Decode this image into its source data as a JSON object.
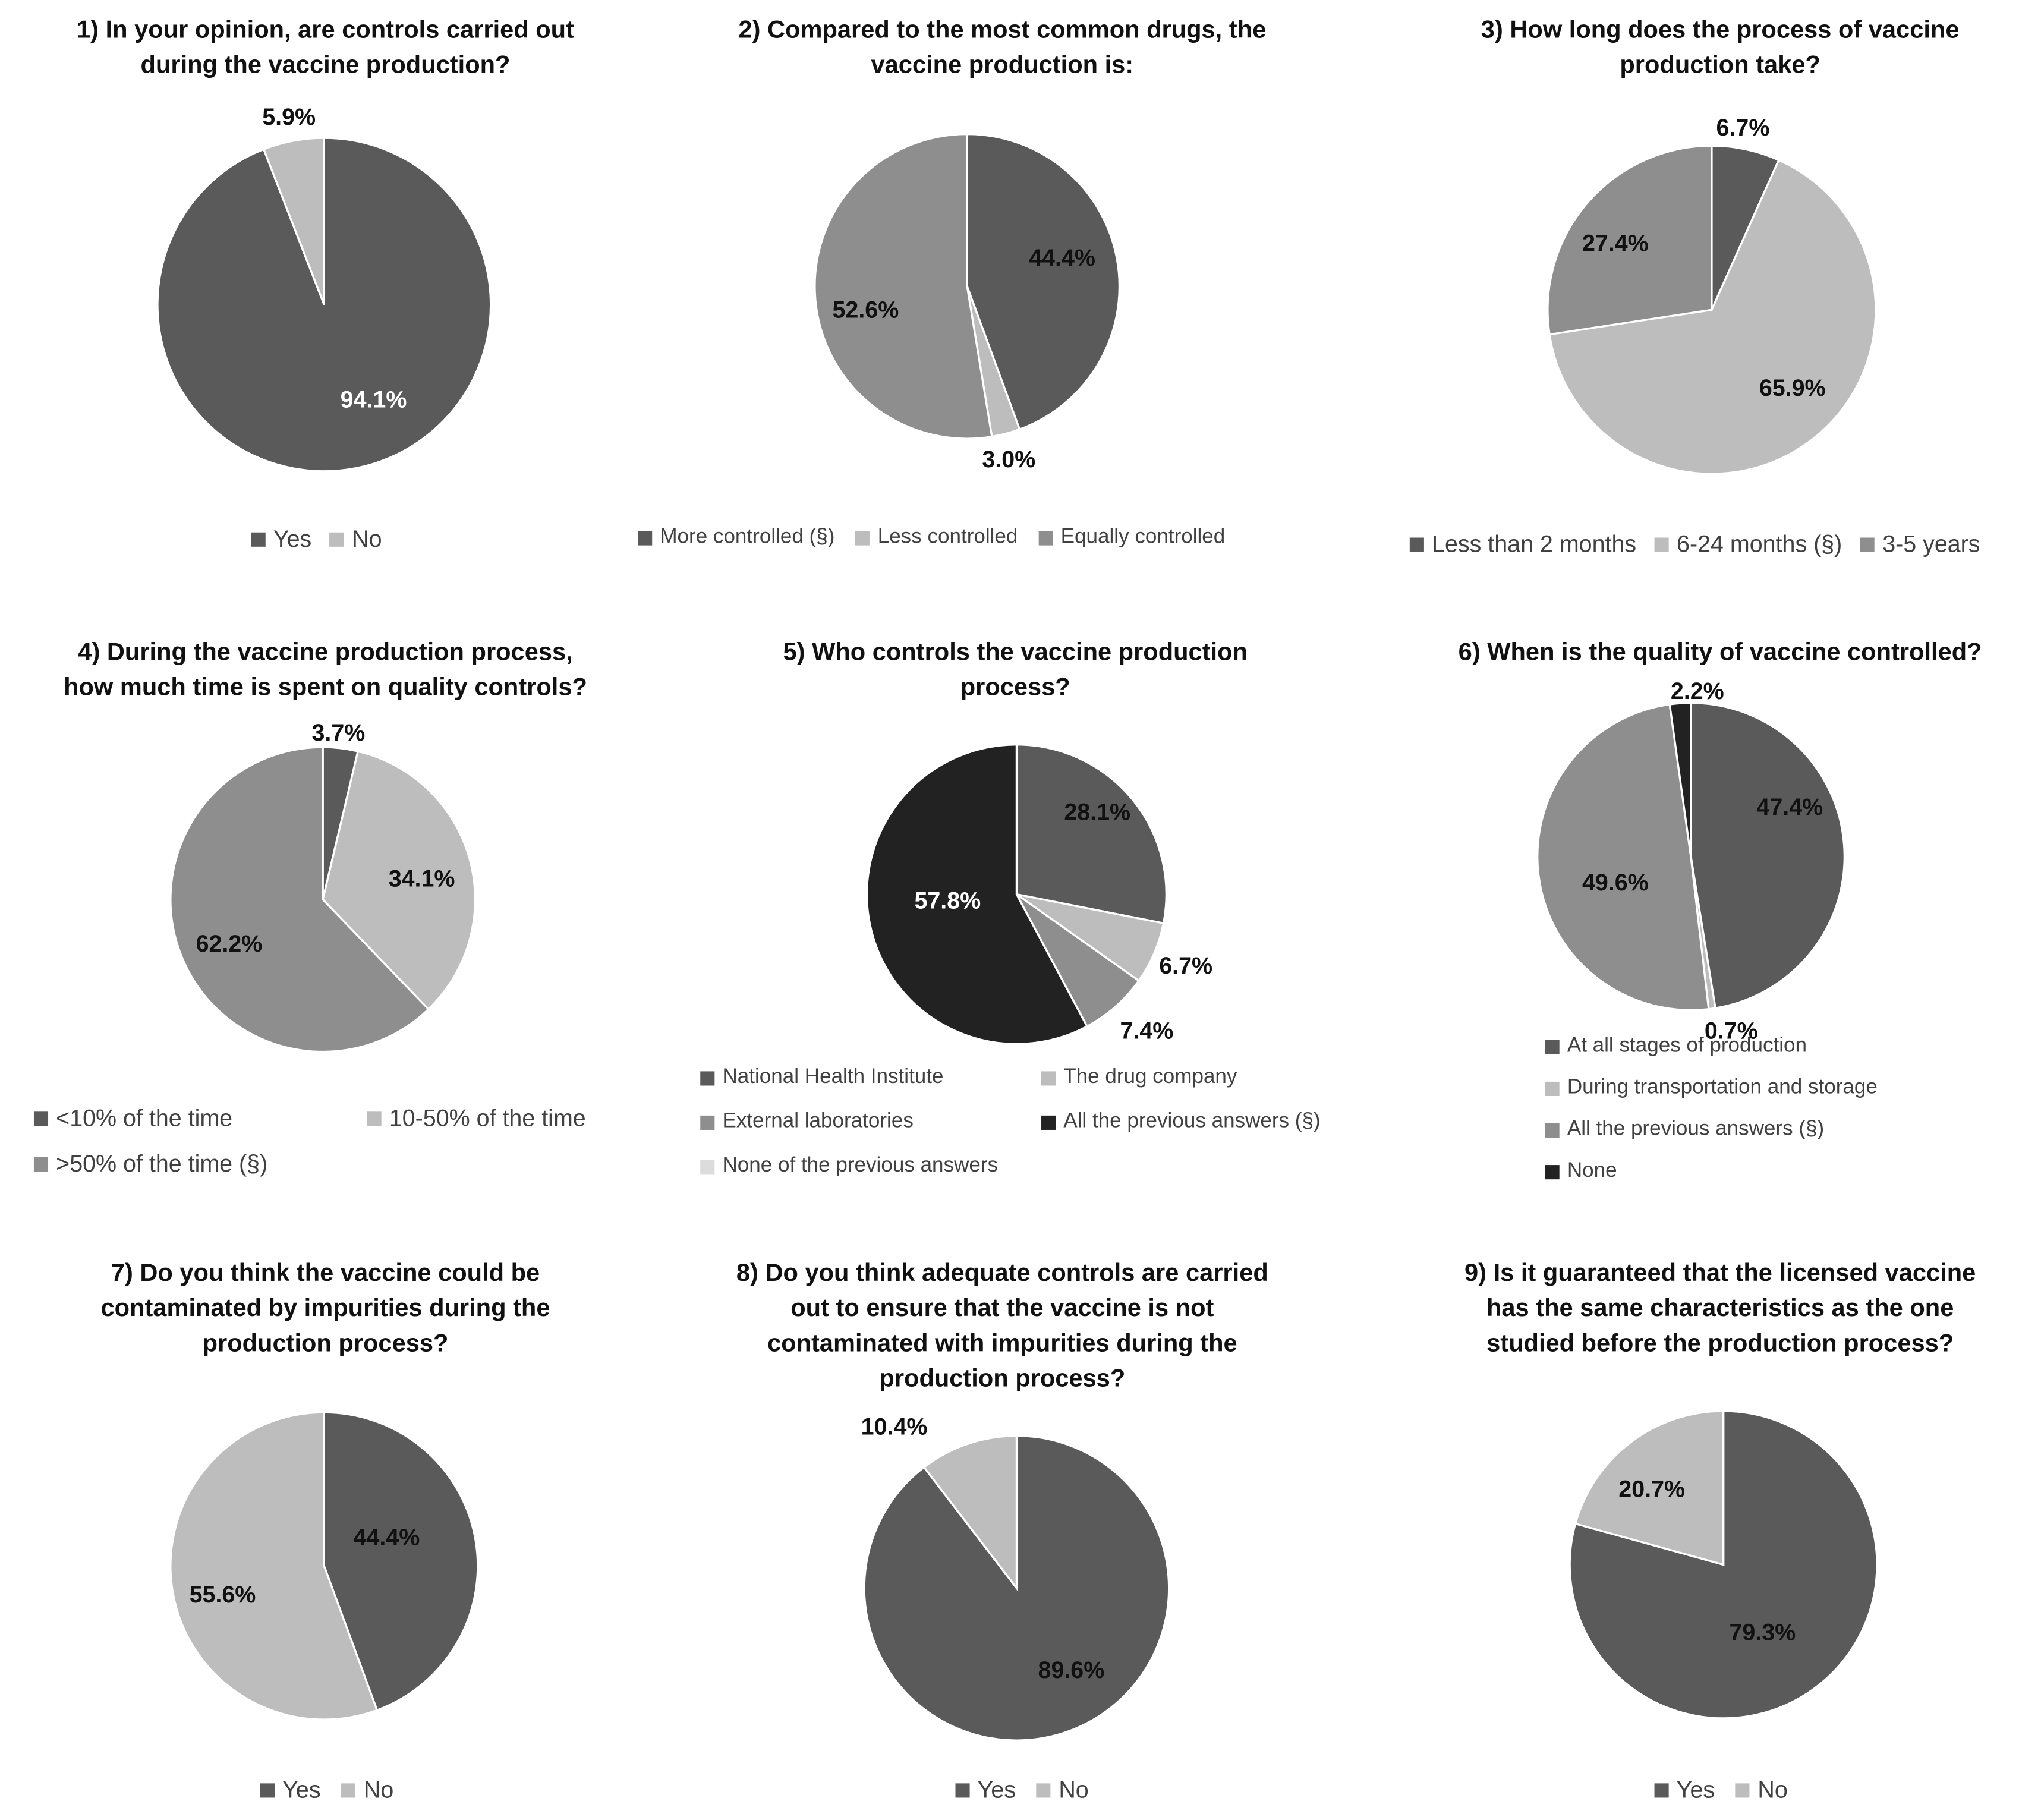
{
  "colors": {
    "dark": "#5a5a5a",
    "light": "#bdbdbd",
    "mid": "#8e8e8e",
    "black": "#222222",
    "verylight": "#dcdcdc",
    "label_dark": "#111111",
    "label_light": "#ffffff"
  },
  "chart_data": [
    {
      "type": "pie",
      "title": "1) In your opinion, are controls carried out during the vaccine production?",
      "title_lines": [
        "1) In your opinion, are controls carried out",
        "during the vaccine production?"
      ],
      "slices": [
        {
          "label": "Yes",
          "value": 94.1,
          "display": "94.1%",
          "color": "dark"
        },
        {
          "label": "No",
          "value": 5.9,
          "display": "5.9%",
          "color": "light"
        }
      ],
      "legend": [
        "Yes",
        "No"
      ]
    },
    {
      "type": "pie",
      "title": "2) Compared to the most common drugs, the vaccine production is:",
      "title_lines": [
        "2) Compared to the most common drugs, the",
        "vaccine production is:"
      ],
      "slices": [
        {
          "label": "More controlled (§)",
          "value": 44.4,
          "display": "44.4%",
          "color": "dark"
        },
        {
          "label": "Less controlled",
          "value": 3.0,
          "display": "3.0%",
          "color": "light"
        },
        {
          "label": "Equally controlled",
          "value": 52.6,
          "display": "52.6%",
          "color": "mid"
        }
      ],
      "legend": [
        "More controlled (§)",
        "Less controlled",
        "Equally controlled"
      ]
    },
    {
      "type": "pie",
      "title": "3) How long does the process of vaccine production take?",
      "title_lines": [
        "3) How long does the process of vaccine",
        "production take?"
      ],
      "slices": [
        {
          "label": "Less than 2 months",
          "value": 6.7,
          "display": "6.7%",
          "color": "dark"
        },
        {
          "label": "6-24 months (§)",
          "value": 65.9,
          "display": "65.9%",
          "color": "light"
        },
        {
          "label": "3-5 years",
          "value": 27.4,
          "display": "27.4%",
          "color": "mid"
        }
      ],
      "legend": [
        "Less than 2 months",
        "6-24 months (§)",
        "3-5 years"
      ]
    },
    {
      "type": "pie",
      "title": "4) During the vaccine production process, how much time is spent on quality controls?",
      "title_lines": [
        "4) During the vaccine production process,",
        "how much time is spent on quality controls?"
      ],
      "slices": [
        {
          "label": "<10% of the time",
          "value": 3.7,
          "display": "3.7%",
          "color": "dark"
        },
        {
          "label": "10-50% of the time",
          "value": 34.1,
          "display": "34.1%",
          "color": "light"
        },
        {
          "label": ">50% of the time (§)",
          "value": 62.2,
          "display": "62.2%",
          "color": "mid"
        }
      ],
      "legend": [
        "<10% of the time",
        "10-50% of the time",
        ">50% of the time (§)"
      ]
    },
    {
      "type": "pie",
      "title": "5) Who controls the vaccine production process?",
      "title_lines": [
        "5) Who controls the vaccine production",
        "process?"
      ],
      "slices": [
        {
          "label": "National Health Institute",
          "value": 28.1,
          "display": "28.1%",
          "color": "dark"
        },
        {
          "label": "The drug company",
          "value": 6.7,
          "display": "6.7%",
          "color": "light"
        },
        {
          "label": "External laboratories",
          "value": 7.4,
          "display": "7.4%",
          "color": "mid"
        },
        {
          "label": "All the previous answers (§)",
          "value": 57.8,
          "display": "57.8%",
          "color": "black"
        },
        {
          "label": "None of the previous answers",
          "value": 0,
          "display": "",
          "color": "verylight"
        }
      ],
      "legend": [
        "National Health Institute",
        "The drug company",
        "External laboratories",
        "All the previous answers (§)",
        "None of the previous answers"
      ]
    },
    {
      "type": "pie",
      "title": "6) When is the quality of vaccine controlled?",
      "title_lines": [
        "6) When is the quality of vaccine controlled?"
      ],
      "slices": [
        {
          "label": "At all stages of production",
          "value": 47.4,
          "display": "47.4%",
          "color": "dark"
        },
        {
          "label": "During transportation and storage",
          "value": 0.7,
          "display": "0.7%",
          "color": "light"
        },
        {
          "label": "All the previous answers (§)",
          "value": 49.6,
          "display": "49.6%",
          "color": "mid"
        },
        {
          "label": "None",
          "value": 2.2,
          "display": "2.2%",
          "color": "black"
        }
      ],
      "legend": [
        "At all stages of production",
        "During transportation and storage",
        "All the previous answers (§)",
        "None"
      ]
    },
    {
      "type": "pie",
      "title": "7) Do you think the vaccine could be contaminated by impurities during the production process?",
      "title_lines": [
        "7) Do you think the vaccine could be",
        "contaminated by impurities during the",
        "production process?"
      ],
      "slices": [
        {
          "label": "Yes",
          "value": 44.4,
          "display": "44.4%",
          "color": "dark"
        },
        {
          "label": "No",
          "value": 55.6,
          "display": "55.6%",
          "color": "light"
        }
      ],
      "legend": [
        "Yes",
        "No"
      ]
    },
    {
      "type": "pie",
      "title": "8) Do you think adequate controls are carried out to ensure that the vaccine is not contaminated with impurities during the production process?",
      "title_lines": [
        "8) Do you think adequate controls are carried",
        "out to ensure that the vaccine is not",
        "contaminated with impurities during the",
        "production process?"
      ],
      "slices": [
        {
          "label": "Yes",
          "value": 89.6,
          "display": "89.6%",
          "color": "dark"
        },
        {
          "label": "No",
          "value": 10.4,
          "display": "10.4%",
          "color": "light"
        }
      ],
      "legend": [
        "Yes",
        "No"
      ]
    },
    {
      "type": "pie",
      "title": "9) Is it guaranteed that the licensed vaccine has the same characteristics as the one studied before the production process?",
      "title_lines": [
        "9) Is it guaranteed that the licensed vaccine",
        "has the same characteristics as the one",
        "studied before the production process?"
      ],
      "slices": [
        {
          "label": "Yes",
          "value": 79.3,
          "display": "79.3%",
          "color": "dark"
        },
        {
          "label": "No",
          "value": 20.7,
          "display": "20.7%",
          "color": "light"
        }
      ],
      "legend": [
        "Yes",
        "No"
      ]
    }
  ]
}
